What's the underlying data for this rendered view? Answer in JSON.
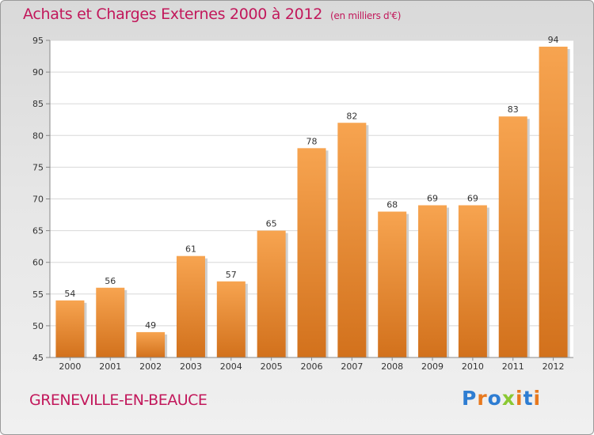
{
  "header": {
    "title": "Achats et Charges Externes 2000 à 2012",
    "subtitle": "(en milliers d'€)"
  },
  "footer": {
    "commune": "GRENEVILLE-EN-BEAUCE",
    "logo": "Proxiti"
  },
  "colors": {
    "title": "#c2185b",
    "bar_top": "#f7a450",
    "bar_bottom": "#d2711c",
    "logo_letters": [
      "#2e7dd2",
      "#e8791e",
      "#2e7dd2",
      "#8ac832",
      "#e8791e",
      "#2e7dd2",
      "#e8791e"
    ]
  },
  "chart_data": {
    "type": "bar",
    "categories": [
      "2000",
      "2001",
      "2002",
      "2003",
      "2004",
      "2005",
      "2006",
      "2007",
      "2008",
      "2009",
      "2010",
      "2011",
      "2012"
    ],
    "values": [
      54,
      56,
      49,
      61,
      57,
      65,
      78,
      82,
      68,
      69,
      69,
      83,
      94
    ],
    "ylim": [
      45,
      95
    ],
    "yticks": [
      45,
      50,
      55,
      60,
      65,
      70,
      75,
      80,
      85,
      90,
      95
    ],
    "grid": true,
    "data_labels": true
  }
}
